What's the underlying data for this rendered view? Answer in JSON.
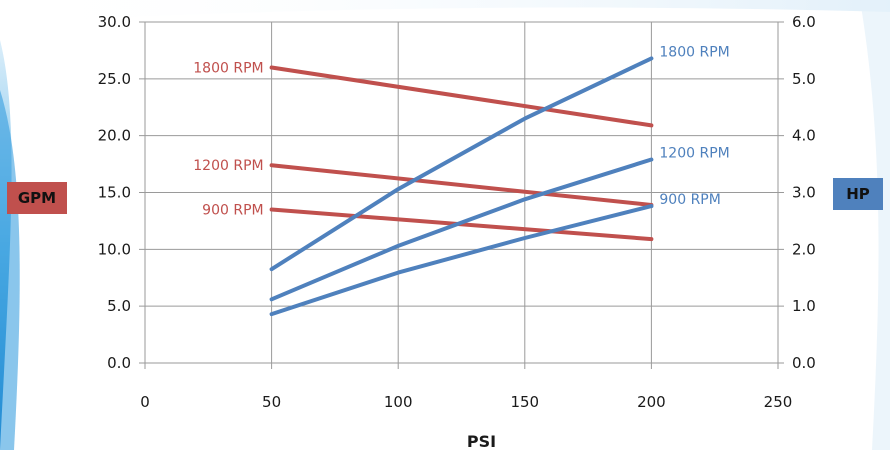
{
  "colors": {
    "gpm": "#C0504D",
    "hp": "#4F81BD",
    "grid": "#9a9a9a",
    "background_accent": "#1f8fd6"
  },
  "badges": {
    "left": "GPM",
    "right": "HP"
  },
  "chart_data": {
    "type": "line",
    "title": "",
    "xlabel": "PSI",
    "ylabel_left": "GPM",
    "ylabel_right": "HP",
    "xlim": [
      0,
      250
    ],
    "ylim_left": [
      0,
      30
    ],
    "ylim_right": [
      0,
      6
    ],
    "x_ticks": [
      "0",
      "50",
      "100",
      "150",
      "200",
      "250"
    ],
    "y_left_ticks": [
      "0.0",
      "5.0",
      "10.0",
      "15.0",
      "20.0",
      "25.0",
      "30.0"
    ],
    "y_right_ticks": [
      "0.0",
      "1.0",
      "2.0",
      "3.0",
      "4.0",
      "5.0",
      "6.0"
    ],
    "grid": true,
    "series": [
      {
        "name": "1800 RPM",
        "axis": "left",
        "color": "#C0504D",
        "x": [
          50,
          200
        ],
        "y": [
          26.0,
          20.9
        ]
      },
      {
        "name": "1200 RPM",
        "axis": "left",
        "color": "#C0504D",
        "x": [
          50,
          200
        ],
        "y": [
          17.4,
          13.9
        ]
      },
      {
        "name": "900 RPM",
        "axis": "left",
        "color": "#C0504D",
        "x": [
          50,
          200
        ],
        "y": [
          13.5,
          10.9
        ]
      },
      {
        "name": "1800 RPM",
        "axis": "right",
        "color": "#4F81BD",
        "x": [
          50,
          100,
          150,
          200
        ],
        "y": [
          1.65,
          3.06,
          4.3,
          5.36
        ]
      },
      {
        "name": "1200 RPM",
        "axis": "right",
        "color": "#4F81BD",
        "x": [
          50,
          100,
          150,
          200
        ],
        "y": [
          1.12,
          2.06,
          2.88,
          3.58
        ]
      },
      {
        "name": "900 RPM",
        "axis": "right",
        "color": "#4F81BD",
        "x": [
          50,
          100,
          150,
          200
        ],
        "y": [
          0.86,
          1.59,
          2.2,
          2.76
        ]
      }
    ]
  }
}
